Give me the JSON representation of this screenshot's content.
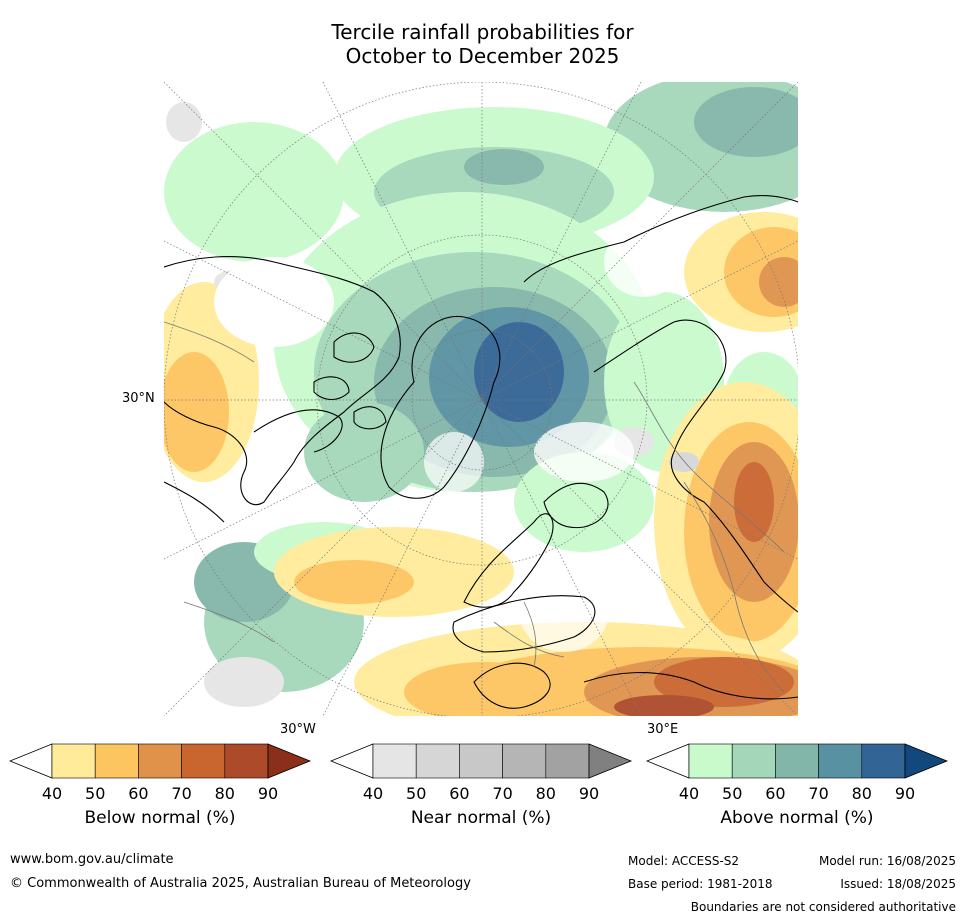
{
  "title_line1": "Tercile rainfall probabilities for",
  "title_line2": "October to December 2025",
  "map": {
    "lat_labels": [
      "30°N"
    ],
    "lon_labels": [
      "30°W",
      "30°E"
    ]
  },
  "legends": [
    {
      "label": "Below normal (%)",
      "ticks": [
        "40",
        "50",
        "60",
        "70",
        "80",
        "90"
      ],
      "colors": [
        "#ffeb99",
        "#fdc560",
        "#e0924b",
        "#c9652f",
        "#ac4a2a",
        "#8b2e1a"
      ]
    },
    {
      "label": "Near normal (%)",
      "ticks": [
        "40",
        "50",
        "60",
        "70",
        "80",
        "90"
      ],
      "colors": [
        "#e5e5e5",
        "#d6d6d6",
        "#c8c8c8",
        "#b5b5b5",
        "#a2a2a2",
        "#808080"
      ]
    },
    {
      "label": "Above normal (%)",
      "ticks": [
        "40",
        "50",
        "60",
        "70",
        "80",
        "90"
      ],
      "colors": [
        "#c8facc",
        "#a4d7b9",
        "#82b6a8",
        "#5891a1",
        "#326495",
        "#13487f"
      ]
    }
  ],
  "footer": {
    "website": "www.bom.gov.au/climate",
    "copyright": "© Commonwealth of Australia 2025, Australian Bureau of Meteorology",
    "model": "Model: ACCESS-S2",
    "model_run": "Model run: 16/08/2025",
    "base_period": "Base period: 1981-2018",
    "issued": "Issued: 18/08/2025",
    "boundaries": "Boundaries are not considered authoritative"
  }
}
